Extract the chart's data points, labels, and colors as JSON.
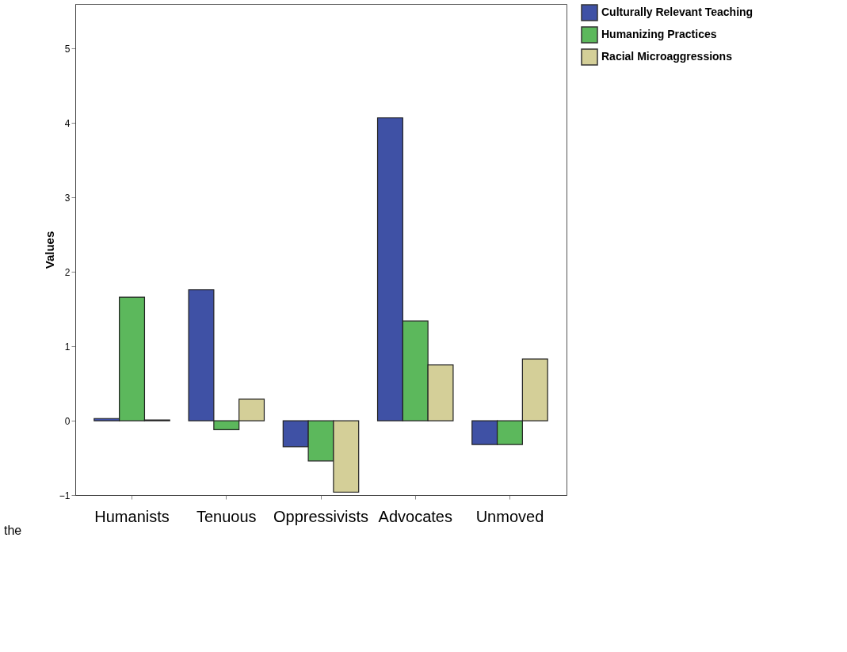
{
  "chart_data": {
    "type": "bar",
    "ylabel": "Values",
    "categories": [
      "Humanists",
      "Tenuous",
      "Oppressivists",
      "Advocates",
      "Unmoved"
    ],
    "series": [
      {
        "name": "Culturally Relevant Teaching",
        "color": "#3f51a5",
        "values": [
          0.03,
          1.76,
          -0.35,
          4.07,
          -0.32
        ]
      },
      {
        "name": "Humanizing Practices",
        "color": "#5cb85c",
        "values": [
          1.66,
          -0.12,
          -0.54,
          1.34,
          -0.32
        ]
      },
      {
        "name": "Racial Microaggressions",
        "color": "#d4cf98",
        "values": [
          0.01,
          0.29,
          -0.96,
          0.75,
          0.83
        ]
      }
    ],
    "ylim": [
      -1,
      5.6
    ],
    "yticks": [
      -1,
      0,
      1,
      2,
      3,
      4,
      5
    ],
    "grid": false,
    "legend": "top right",
    "annotations": [
      "the"
    ]
  }
}
